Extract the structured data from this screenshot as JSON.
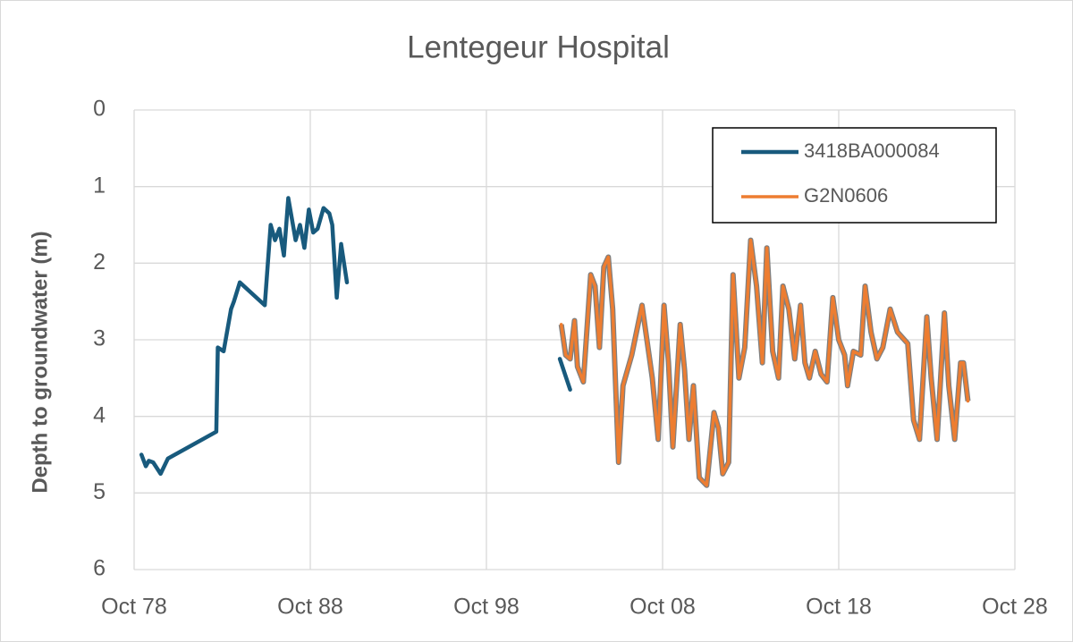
{
  "chart_data": {
    "type": "line",
    "title": "Lentegeur Hospital",
    "y_label": "Depth to groundwater (m)",
    "xlim": [
      "1978-10",
      "2028-10"
    ],
    "xticks": [
      {
        "value": "1978-10",
        "label": "Oct 78"
      },
      {
        "value": "1988-10",
        "label": "Oct 88"
      },
      {
        "value": "1998-10",
        "label": "Oct 98"
      },
      {
        "value": "2008-10",
        "label": "Oct 08"
      },
      {
        "value": "2018-10",
        "label": "Oct 18"
      },
      {
        "value": "2028-10",
        "label": "Oct 28"
      }
    ],
    "ylim": [
      0,
      6
    ],
    "yticks": [
      0,
      1,
      2,
      3,
      4,
      5,
      6
    ],
    "y_reversed": true,
    "grid": true,
    "legend": "top-right",
    "series": [
      {
        "name": "3418BA000084",
        "color": "#185a7d",
        "x": [
          "1979-03",
          "1979-06",
          "1979-08",
          "1979-11",
          "1980-04",
          "1980-09",
          "1983-06",
          "1983-07",
          "1983-11",
          "1984-04",
          "1984-06",
          "1984-10",
          "1986-03",
          "1986-07",
          "1986-10",
          "1987-01",
          "1987-04",
          "1987-07",
          "1987-12",
          "1988-03",
          "1988-06",
          "1988-09",
          "1988-12",
          "1989-03",
          "1989-07",
          "1989-11",
          "1990-01",
          "1990-04",
          "1990-07",
          "1990-11",
          null,
          "2002-12",
          "2003-07"
        ],
        "values": [
          4.5,
          4.65,
          4.58,
          4.6,
          4.75,
          4.55,
          4.2,
          3.1,
          3.15,
          2.6,
          2.5,
          2.25,
          2.55,
          1.5,
          1.7,
          1.55,
          1.9,
          1.15,
          1.7,
          1.5,
          1.8,
          1.3,
          1.6,
          1.55,
          1.28,
          1.35,
          1.5,
          2.45,
          1.75,
          2.25,
          null,
          3.25,
          3.65
        ]
      },
      {
        "name": "G2N0606",
        "color": "#ed7d31",
        "x": [
          "2003-01",
          "2003-04",
          "2003-07",
          "2003-10",
          "2003-12",
          "2004-04",
          "2004-09",
          "2004-12",
          "2005-03",
          "2005-06",
          "2005-09",
          "2005-12",
          "2006-04",
          "2006-07",
          "2007-01",
          "2007-08",
          "2008-03",
          "2008-07",
          "2008-11",
          "2009-02",
          "2009-05",
          "2009-10",
          "2010-01",
          "2010-04",
          "2010-07",
          "2010-11",
          "2011-04",
          "2011-09",
          "2011-12",
          "2012-03",
          "2012-07",
          "2012-10",
          "2013-02",
          "2013-06",
          "2013-10",
          "2014-02",
          "2014-06",
          "2014-09",
          "2015-01",
          "2015-05",
          "2015-08",
          "2015-12",
          "2016-04",
          "2016-08",
          "2016-11",
          "2017-02",
          "2017-06",
          "2017-10",
          "2018-02",
          "2018-06",
          "2018-10",
          "2019-02",
          "2019-04",
          "2019-08",
          "2020-01",
          "2020-04",
          "2020-08",
          "2020-12",
          "2021-04",
          "2021-09",
          "2022-02",
          "2022-09",
          "2023-01",
          "2023-05",
          "2023-10",
          "2024-01",
          "2024-05",
          "2024-10",
          "2025-01",
          "2025-05",
          "2025-09",
          "2025-11",
          "2026-02"
        ],
        "values": [
          2.8,
          3.2,
          3.25,
          2.75,
          3.35,
          3.55,
          2.15,
          2.3,
          3.1,
          2.05,
          1.92,
          2.6,
          4.6,
          3.6,
          3.2,
          2.55,
          3.5,
          4.3,
          2.55,
          3.3,
          4.4,
          2.8,
          3.4,
          4.3,
          3.6,
          4.8,
          4.9,
          3.95,
          4.15,
          4.75,
          4.6,
          2.15,
          3.5,
          3.1,
          1.7,
          2.3,
          3.3,
          1.8,
          3.15,
          3.5,
          2.3,
          2.6,
          3.25,
          2.55,
          3.3,
          3.5,
          3.15,
          3.45,
          3.55,
          2.45,
          3.0,
          3.2,
          3.6,
          3.15,
          3.2,
          2.3,
          2.9,
          3.25,
          3.1,
          2.6,
          2.9,
          3.05,
          4.05,
          4.3,
          2.7,
          3.5,
          4.3,
          2.65,
          3.6,
          4.3,
          3.3,
          3.3,
          3.8
        ]
      }
    ]
  }
}
